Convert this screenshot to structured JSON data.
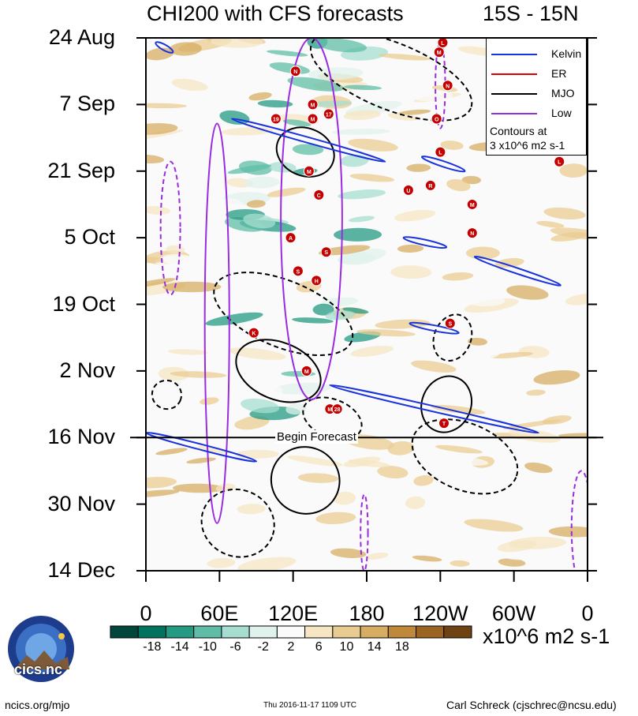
{
  "chart_data": {
    "type": "heatmap",
    "title": "CHI200 with CFS forecasts",
    "latitude_band": "15S - 15N",
    "ylabel": "",
    "xlabel": "",
    "y_tick_labels": [
      "24 Aug",
      "7 Sep",
      "21 Sep",
      "5 Oct",
      "19 Oct",
      "2 Nov",
      "16 Nov",
      "30 Nov",
      "14 Dec"
    ],
    "y_range_days": [
      0,
      112
    ],
    "x_tick_labels": [
      "0",
      "60E",
      "120E",
      "180",
      "120W",
      "60W",
      "0"
    ],
    "x_range_lon": [
      0,
      360
    ],
    "forecast_start": {
      "label": "Begin Forecast",
      "date": "16 Nov"
    },
    "colorbar": {
      "labels": [
        "-18",
        "-14",
        "-10",
        "-6",
        "-2",
        "2",
        "6",
        "10",
        "14",
        "18"
      ],
      "units": "x10^6 m2 s-1",
      "colors": [
        "#00463a",
        "#00735f",
        "#249a83",
        "#5fbda7",
        "#a7ddd0",
        "#e0f2ec",
        "#fafafa",
        "#f6e6c3",
        "#e9cc92",
        "#d7ad63",
        "#c0893a",
        "#9c6423",
        "#6e4212"
      ]
    },
    "legend": [
      {
        "name": "Kelvin",
        "color": "#1a33dd"
      },
      {
        "name": "ER",
        "color": "#e00000"
      },
      {
        "name": "MJO",
        "color": "#000000"
      },
      {
        "name": "Low",
        "color": "#9a2be0"
      }
    ],
    "legend_note": [
      "Contours at",
      "3 x10^6 m2 s-1"
    ],
    "storms": [
      {
        "lon": 122,
        "day": 7,
        "label": "N"
      },
      {
        "lon": 136,
        "day": 14,
        "label": "M"
      },
      {
        "lon": 136,
        "day": 17,
        "label": "M"
      },
      {
        "lon": 149,
        "day": 16,
        "label": "17"
      },
      {
        "lon": 106,
        "day": 17,
        "label": "19"
      },
      {
        "lon": 133,
        "day": 28,
        "label": "M"
      },
      {
        "lon": 141,
        "day": 33,
        "label": "C"
      },
      {
        "lon": 118,
        "day": 42,
        "label": "A"
      },
      {
        "lon": 147,
        "day": 45,
        "label": "S"
      },
      {
        "lon": 124,
        "day": 49,
        "label": "S"
      },
      {
        "lon": 139,
        "day": 51,
        "label": "H"
      },
      {
        "lon": 88,
        "day": 62,
        "label": "K"
      },
      {
        "lon": 131,
        "day": 70,
        "label": "M"
      },
      {
        "lon": 150,
        "day": 78,
        "label": "M"
      },
      {
        "lon": 156,
        "day": 78,
        "label": "28"
      },
      {
        "lon": 239,
        "day": 3,
        "label": "M"
      },
      {
        "lon": 242,
        "day": 1,
        "label": "L"
      },
      {
        "lon": 246,
        "day": 10,
        "label": "N"
      },
      {
        "lon": 237,
        "day": 17,
        "label": "O"
      },
      {
        "lon": 240,
        "day": 24,
        "label": "L"
      },
      {
        "lon": 214,
        "day": 32,
        "label": "U"
      },
      {
        "lon": 232,
        "day": 31,
        "label": "R"
      },
      {
        "lon": 266,
        "day": 35,
        "label": "M"
      },
      {
        "lon": 266,
        "day": 41,
        "label": "N"
      },
      {
        "lon": 337,
        "day": 26,
        "label": "L"
      },
      {
        "lon": 248,
        "day": 60,
        "label": "S"
      },
      {
        "lon": 243,
        "day": 81,
        "label": "T"
      }
    ],
    "kelvin_contours": [
      {
        "start": [
          8,
          1
        ],
        "end": [
          22,
          3
        ]
      },
      {
        "start": [
          70,
          17
        ],
        "end": [
          195,
          26
        ]
      },
      {
        "start": [
          225,
          25
        ],
        "end": [
          260,
          28
        ]
      },
      {
        "start": [
          210,
          42
        ],
        "end": [
          245,
          44
        ]
      },
      {
        "start": [
          268,
          46
        ],
        "end": [
          338,
          52
        ]
      },
      {
        "start": [
          215,
          60
        ],
        "end": [
          255,
          62
        ]
      },
      {
        "start": [
          150,
          73
        ],
        "end": [
          320,
          83
        ]
      },
      {
        "start": [
          0,
          83
        ],
        "end": [
          90,
          89
        ]
      }
    ],
    "mjo_contours": [
      {
        "center": [
          130,
          24
        ],
        "rx": 24,
        "ry": 5,
        "sign": "neg"
      },
      {
        "center": [
          108,
          70
        ],
        "rx": 36,
        "ry": 6,
        "sign": "neg"
      },
      {
        "center": [
          245,
          77
        ],
        "rx": 20,
        "ry": 6,
        "sign": "neg"
      },
      {
        "center": [
          130,
          93
        ],
        "rx": 28,
        "ry": 7,
        "sign": "neg"
      },
      {
        "center": [
          17,
          75
        ],
        "rx": 12,
        "ry": 3,
        "sign": "pos"
      },
      {
        "center": [
          112,
          58
        ],
        "rx": 60,
        "ry": 7,
        "sign": "pos"
      },
      {
        "center": [
          152,
          80
        ],
        "rx": 25,
        "ry": 4,
        "sign": "pos"
      },
      {
        "center": [
          260,
          88
        ],
        "rx": 45,
        "ry": 7,
        "sign": "pos"
      },
      {
        "center": [
          75,
          102
        ],
        "rx": 30,
        "ry": 7,
        "sign": "pos"
      },
      {
        "center": [
          250,
          63
        ],
        "rx": 15,
        "ry": 5,
        "sign": "pos"
      },
      {
        "center": [
          200,
          8
        ],
        "rx": 70,
        "ry": 7,
        "sign": "pos"
      }
    ],
    "low_contours": [
      {
        "center": [
          135,
          38
        ],
        "rx": 25,
        "ry": 38
      },
      {
        "center": [
          20,
          40
        ],
        "rx": 8,
        "ry": 14
      },
      {
        "center": [
          58,
          60
        ],
        "rx": 10,
        "ry": 42
      },
      {
        "center": [
          240,
          10
        ],
        "rx": 4,
        "ry": 9
      },
      {
        "center": [
          178,
          104
        ],
        "rx": 3,
        "ry": 8
      },
      {
        "center": [
          355,
          103
        ],
        "rx": 8,
        "ry": 12
      }
    ]
  },
  "footer": {
    "website": "ncics.org/mjo",
    "timestamp": "Thu 2016-11-17 1109 UTC",
    "author": "Carl Schreck (cjschrec@ncsu.edu)",
    "logo_text": "cics.nc"
  }
}
